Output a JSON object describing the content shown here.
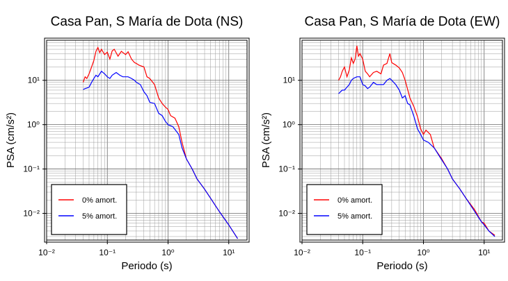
{
  "chart_data": [
    {
      "type": "line",
      "title": "Casa Pan, S María de Dota (NS)",
      "xlabel": "Periodo (s)",
      "ylabel": "PSA (cm/s²)",
      "xscale": "log",
      "yscale": "log",
      "xlim": [
        0.01,
        20
      ],
      "ylim": [
        0.0025,
        80
      ],
      "grid": true,
      "legend_position": "bottom-left",
      "x_ticks": [
        "10⁻²",
        "10⁻¹",
        "10⁰",
        "10¹"
      ],
      "y_ticks": [
        "10⁻²",
        "10⁻¹",
        "10⁰",
        "10¹"
      ],
      "series": [
        {
          "name": "0% amort.",
          "color": "#ff0000",
          "points": [
            [
              0.04,
              9
            ],
            [
              0.043,
              12
            ],
            [
              0.046,
              11
            ],
            [
              0.05,
              14
            ],
            [
              0.055,
              20
            ],
            [
              0.06,
              28
            ],
            [
              0.065,
              45
            ],
            [
              0.07,
              55
            ],
            [
              0.075,
              42
            ],
            [
              0.08,
              50
            ],
            [
              0.09,
              38
            ],
            [
              0.1,
              43
            ],
            [
              0.11,
              30
            ],
            [
              0.12,
              46
            ],
            [
              0.13,
              50
            ],
            [
              0.15,
              35
            ],
            [
              0.17,
              45
            ],
            [
              0.2,
              38
            ],
            [
              0.22,
              44
            ],
            [
              0.25,
              30
            ],
            [
              0.28,
              25
            ],
            [
              0.3,
              24
            ],
            [
              0.33,
              22
            ],
            [
              0.4,
              20
            ],
            [
              0.45,
              12
            ],
            [
              0.5,
              11
            ],
            [
              0.6,
              8
            ],
            [
              0.7,
              4
            ],
            [
              0.8,
              3
            ],
            [
              0.9,
              2.5
            ],
            [
              1.0,
              2.2
            ],
            [
              1.1,
              1.6
            ],
            [
              1.3,
              1.4
            ],
            [
              1.5,
              0.9
            ],
            [
              1.7,
              0.4
            ],
            [
              2.0,
              0.17
            ],
            [
              2.5,
              0.1
            ],
            [
              3.0,
              0.06
            ],
            [
              4.0,
              0.035
            ],
            [
              5.0,
              0.022
            ],
            [
              7.0,
              0.011
            ],
            [
              10.0,
              0.0055
            ],
            [
              14.0,
              0.0027
            ]
          ]
        },
        {
          "name": "5% amort.",
          "color": "#0000ff",
          "points": [
            [
              0.04,
              6.2
            ],
            [
              0.043,
              6.5
            ],
            [
              0.046,
              6.7
            ],
            [
              0.05,
              7
            ],
            [
              0.055,
              9
            ],
            [
              0.06,
              11
            ],
            [
              0.065,
              13
            ],
            [
              0.07,
              12
            ],
            [
              0.08,
              16
            ],
            [
              0.09,
              14
            ],
            [
              0.1,
              12
            ],
            [
              0.11,
              11
            ],
            [
              0.12,
              13
            ],
            [
              0.14,
              15
            ],
            [
              0.16,
              13
            ],
            [
              0.18,
              12
            ],
            [
              0.2,
              12
            ],
            [
              0.22,
              12
            ],
            [
              0.25,
              11
            ],
            [
              0.28,
              10
            ],
            [
              0.3,
              9
            ],
            [
              0.35,
              8
            ],
            [
              0.4,
              5.5
            ],
            [
              0.45,
              4.5
            ],
            [
              0.5,
              3.2
            ],
            [
              0.6,
              3
            ],
            [
              0.7,
              1.8
            ],
            [
              0.8,
              1.6
            ],
            [
              0.9,
              1.2
            ],
            [
              1.0,
              1.0
            ],
            [
              1.2,
              0.9
            ],
            [
              1.5,
              0.6
            ],
            [
              1.7,
              0.3
            ],
            [
              2.0,
              0.17
            ],
            [
              2.5,
              0.1
            ],
            [
              3.0,
              0.06
            ],
            [
              4.0,
              0.035
            ],
            [
              5.0,
              0.022
            ],
            [
              7.0,
              0.011
            ],
            [
              10.0,
              0.0055
            ],
            [
              14.0,
              0.0027
            ]
          ]
        }
      ]
    },
    {
      "type": "line",
      "title": "Casa Pan, S María de Dota (EW)",
      "xlabel": "Periodo (s)",
      "ylabel": "PSA (cm/s²)",
      "xscale": "log",
      "yscale": "log",
      "xlim": [
        0.01,
        20
      ],
      "ylim": [
        0.0025,
        80
      ],
      "grid": true,
      "legend_position": "bottom-left",
      "x_ticks": [
        "10⁻²",
        "10⁻¹",
        "10⁰",
        "10¹"
      ],
      "y_ticks": [
        "10⁻²",
        "10⁻¹",
        "10⁰",
        "10¹"
      ],
      "series": [
        {
          "name": "0% amort.",
          "color": "#ff0000",
          "points": [
            [
              0.04,
              10
            ],
            [
              0.043,
              12
            ],
            [
              0.046,
              16
            ],
            [
              0.05,
              20
            ],
            [
              0.055,
              12
            ],
            [
              0.06,
              17
            ],
            [
              0.065,
              32
            ],
            [
              0.07,
              24
            ],
            [
              0.075,
              30
            ],
            [
              0.08,
              60
            ],
            [
              0.085,
              35
            ],
            [
              0.09,
              40
            ],
            [
              0.1,
              30
            ],
            [
              0.11,
              16
            ],
            [
              0.12,
              14
            ],
            [
              0.13,
              12
            ],
            [
              0.15,
              15
            ],
            [
              0.17,
              16
            ],
            [
              0.2,
              14
            ],
            [
              0.22,
              22
            ],
            [
              0.25,
              24
            ],
            [
              0.28,
              40
            ],
            [
              0.3,
              25
            ],
            [
              0.35,
              22
            ],
            [
              0.4,
              19
            ],
            [
              0.45,
              15
            ],
            [
              0.5,
              10
            ],
            [
              0.6,
              4
            ],
            [
              0.7,
              2.5
            ],
            [
              0.8,
              1.5
            ],
            [
              0.9,
              0.8
            ],
            [
              1.0,
              0.6
            ],
            [
              1.1,
              0.75
            ],
            [
              1.3,
              0.6
            ],
            [
              1.5,
              0.3
            ],
            [
              2.0,
              0.17
            ],
            [
              2.5,
              0.1
            ],
            [
              3.0,
              0.06
            ],
            [
              4.0,
              0.035
            ],
            [
              5.0,
              0.022
            ],
            [
              7.0,
              0.012
            ],
            [
              9.0,
              0.0065
            ],
            [
              10.0,
              0.006
            ],
            [
              12.0,
              0.004
            ],
            [
              15.0,
              0.0032
            ]
          ]
        },
        {
          "name": "5% amort.",
          "color": "#0000ff",
          "points": [
            [
              0.04,
              5
            ],
            [
              0.043,
              5.5
            ],
            [
              0.046,
              6
            ],
            [
              0.05,
              6
            ],
            [
              0.055,
              7
            ],
            [
              0.06,
              8
            ],
            [
              0.065,
              10
            ],
            [
              0.07,
              11
            ],
            [
              0.08,
              12
            ],
            [
              0.09,
              12
            ],
            [
              0.1,
              8
            ],
            [
              0.11,
              7.5
            ],
            [
              0.12,
              6.5
            ],
            [
              0.13,
              7
            ],
            [
              0.15,
              9
            ],
            [
              0.17,
              8
            ],
            [
              0.2,
              8
            ],
            [
              0.22,
              8
            ],
            [
              0.25,
              10
            ],
            [
              0.28,
              11
            ],
            [
              0.3,
              10
            ],
            [
              0.35,
              8
            ],
            [
              0.4,
              6
            ],
            [
              0.45,
              4
            ],
            [
              0.5,
              4.5
            ],
            [
              0.55,
              3
            ],
            [
              0.6,
              2.8
            ],
            [
              0.7,
              1.5
            ],
            [
              0.8,
              0.8
            ],
            [
              0.9,
              0.6
            ],
            [
              1.0,
              0.45
            ],
            [
              1.2,
              0.4
            ],
            [
              1.5,
              0.3
            ],
            [
              2.0,
              0.16
            ],
            [
              2.5,
              0.1
            ],
            [
              3.0,
              0.06
            ],
            [
              4.0,
              0.035
            ],
            [
              5.0,
              0.022
            ],
            [
              7.0,
              0.011
            ],
            [
              9.0,
              0.0065
            ],
            [
              10.0,
              0.0055
            ],
            [
              12.0,
              0.004
            ],
            [
              15.0,
              0.003
            ]
          ]
        }
      ]
    }
  ]
}
